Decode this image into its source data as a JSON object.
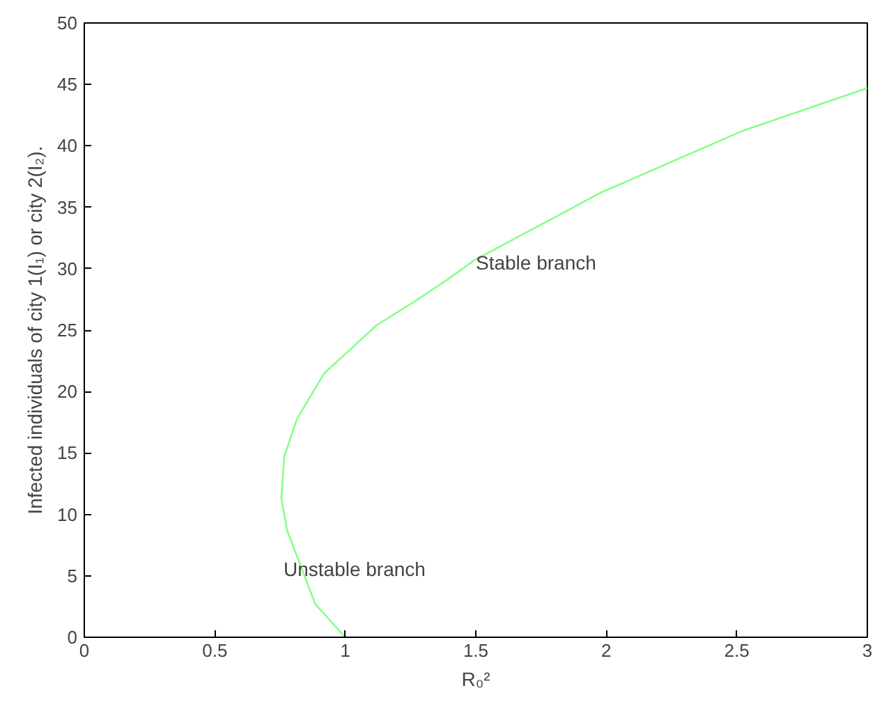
{
  "chart_data": {
    "type": "line",
    "xlabel": "R₀²",
    "ylabel": "Infected individuals of city 1(I₁) or city 2(I₂).",
    "x": [
      1,
      0.885,
      0.777,
      0.755,
      0.766,
      0.815,
      0.92,
      1.12,
      1.263,
      1.39,
      1.495,
      1.98,
      2.52,
      3
    ],
    "series": [
      {
        "color": "#80ff80",
        "values": [
          0,
          2.7,
          8.7,
          11.3,
          14.7,
          17.8,
          21.5,
          25.4,
          27.3,
          29.1,
          30.7,
          36.2,
          41.2,
          44.7
        ]
      }
    ],
    "xlim": [
      0,
      3
    ],
    "ylim": [
      0,
      50
    ],
    "xticks": [
      0,
      0.5,
      1,
      1.5,
      2,
      2.5,
      3
    ],
    "yticks": [
      0,
      5,
      10,
      15,
      20,
      25,
      30,
      35,
      40,
      45,
      50
    ],
    "grid": false,
    "annotations": [
      {
        "text": "Stable branch",
        "x": 1.5,
        "y": 30.5
      },
      "Unstable branch"
    ]
  }
}
